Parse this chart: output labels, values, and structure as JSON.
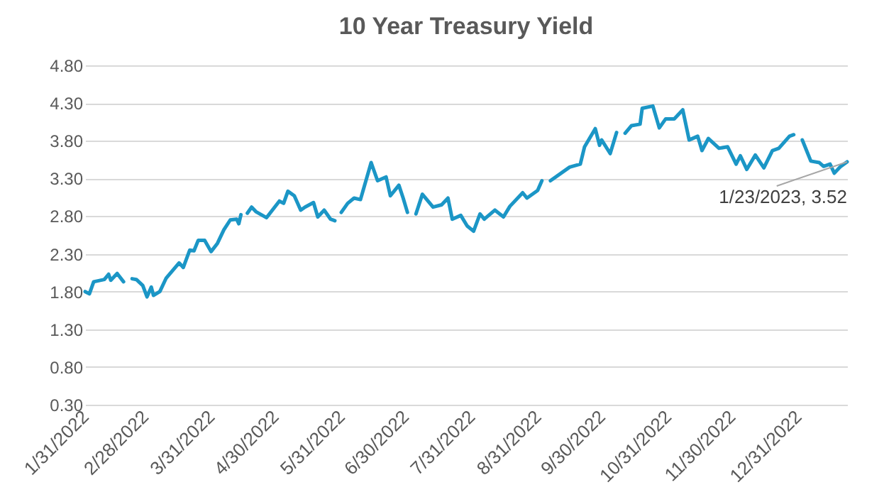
{
  "chart_data": {
    "type": "line",
    "title": "10 Year Treasury Yield",
    "x": [
      "2022-01-31",
      "2022-02-02",
      "2022-02-04",
      "2022-02-09",
      "2022-02-11",
      "2022-02-12",
      "2022-02-15",
      "2022-02-18",
      "2022-02-20",
      "2022-02-22",
      "2022-02-24",
      "2022-02-27",
      "2022-03-01",
      "2022-03-03",
      "2022-03-04",
      "2022-03-07",
      "2022-03-10",
      "2022-03-16",
      "2022-03-18",
      "2022-03-21",
      "2022-03-23",
      "2022-03-25",
      "2022-03-28",
      "2022-03-31",
      "2022-04-03",
      "2022-04-06",
      "2022-04-09",
      "2022-04-12",
      "2022-04-13",
      "2022-04-14",
      "2022-04-15",
      "2022-04-17",
      "2022-04-19",
      "2022-04-21",
      "2022-04-26",
      "2022-05-02",
      "2022-05-04",
      "2022-05-06",
      "2022-05-09",
      "2022-05-12",
      "2022-05-14",
      "2022-05-18",
      "2022-05-20",
      "2022-05-23",
      "2022-05-26",
      "2022-05-28",
      "2022-05-30",
      "2022-05-31",
      "2022-06-03",
      "2022-06-06",
      "2022-06-09",
      "2022-06-14",
      "2022-06-17",
      "2022-06-21",
      "2022-06-23",
      "2022-06-27",
      "2022-06-29",
      "2022-07-01",
      "2022-07-03",
      "2022-07-05",
      "2022-07-08",
      "2022-07-13",
      "2022-07-17",
      "2022-07-20",
      "2022-07-22",
      "2022-07-26",
      "2022-07-29",
      "2022-08-01",
      "2022-08-04",
      "2022-08-06",
      "2022-08-11",
      "2022-08-15",
      "2022-08-18",
      "2022-08-24",
      "2022-08-26",
      "2022-08-31",
      "2022-09-02",
      "2022-09-04",
      "2022-09-06",
      "2022-09-15",
      "2022-09-20",
      "2022-09-22",
      "2022-09-27",
      "2022-09-29",
      "2022-09-30",
      "2022-10-04",
      "2022-10-07",
      "2022-10-09",
      "2022-10-11",
      "2022-10-14",
      "2022-10-18",
      "2022-10-19",
      "2022-10-24",
      "2022-10-27",
      "2022-10-30",
      "2022-11-03",
      "2022-11-07",
      "2022-11-10",
      "2022-11-14",
      "2022-11-16",
      "2022-11-19",
      "2022-11-24",
      "2022-11-28",
      "2022-12-02",
      "2022-12-04",
      "2022-12-07",
      "2022-12-11",
      "2022-12-15",
      "2022-12-19",
      "2022-12-22",
      "2022-12-27",
      "2022-12-29",
      "2022-12-31",
      "2023-01-02",
      "2023-01-04",
      "2023-01-06",
      "2023-01-10",
      "2023-01-12",
      "2023-01-15",
      "2023-01-17",
      "2023-01-20",
      "2023-01-23"
    ],
    "series": [
      {
        "color": "#1b96c6",
        "values": [
          1.8,
          1.77,
          1.93,
          1.96,
          2.03,
          1.95,
          2.04,
          1.93,
          null,
          1.97,
          1.96,
          1.88,
          1.73,
          1.86,
          1.75,
          1.8,
          1.98,
          2.18,
          2.12,
          2.35,
          2.34,
          2.48,
          2.48,
          2.33,
          2.44,
          2.62,
          2.75,
          2.76,
          2.7,
          2.82,
          null,
          2.84,
          2.92,
          2.86,
          2.78,
          3.0,
          2.97,
          3.13,
          3.07,
          2.88,
          2.92,
          2.98,
          2.79,
          2.88,
          2.76,
          2.74,
          null,
          2.85,
          2.97,
          3.04,
          3.02,
          3.51,
          3.27,
          3.32,
          3.07,
          3.21,
          3.04,
          2.85,
          null,
          2.83,
          3.09,
          2.92,
          2.95,
          3.04,
          2.76,
          2.81,
          2.67,
          2.6,
          2.83,
          2.76,
          2.88,
          2.79,
          2.93,
          3.11,
          3.04,
          3.14,
          3.27,
          null,
          3.27,
          3.45,
          3.49,
          3.72,
          3.96,
          3.74,
          3.81,
          3.63,
          3.91,
          null,
          3.9,
          4.0,
          4.02,
          4.23,
          4.26,
          3.97,
          4.09,
          4.09,
          4.21,
          3.81,
          3.86,
          3.67,
          3.83,
          3.7,
          3.72,
          3.49,
          3.6,
          3.42,
          3.61,
          3.44,
          3.67,
          3.7,
          3.86,
          3.88,
          null,
          3.81,
          3.67,
          3.53,
          3.51,
          3.46,
          3.49,
          3.37,
          3.46,
          3.52
        ]
      }
    ],
    "xlim": [
      "2022-01-31",
      "2023-01-23"
    ],
    "xticks": [
      {
        "value": "2022-01-31",
        "label": "1/31/2022"
      },
      {
        "value": "2022-02-28",
        "label": "2/28/2022"
      },
      {
        "value": "2022-03-31",
        "label": "3/31/2022"
      },
      {
        "value": "2022-04-30",
        "label": "4/30/2022"
      },
      {
        "value": "2022-05-31",
        "label": "5/31/2022"
      },
      {
        "value": "2022-06-30",
        "label": "6/30/2022"
      },
      {
        "value": "2022-07-31",
        "label": "7/31/2022"
      },
      {
        "value": "2022-08-31",
        "label": "8/31/2022"
      },
      {
        "value": "2022-09-30",
        "label": "9/30/2022"
      },
      {
        "value": "2022-10-31",
        "label": "10/31/2022"
      },
      {
        "value": "2022-11-30",
        "label": "11/30/2022"
      },
      {
        "value": "2022-12-31",
        "label": "12/31/2022"
      }
    ],
    "ylim": [
      0.3,
      4.8
    ],
    "yticks": [
      {
        "value": 0.3,
        "label": "0.30"
      },
      {
        "value": 0.8,
        "label": "0.80"
      },
      {
        "value": 1.3,
        "label": "1.30"
      },
      {
        "value": 1.8,
        "label": "1.80"
      },
      {
        "value": 2.3,
        "label": "2.30"
      },
      {
        "value": 2.8,
        "label": "2.80"
      },
      {
        "value": 3.3,
        "label": "3.30"
      },
      {
        "value": 3.8,
        "label": "3.80"
      },
      {
        "value": 4.3,
        "label": "4.30"
      },
      {
        "value": 4.8,
        "label": "4.80"
      }
    ],
    "grid": "y",
    "legend": false,
    "marker": "none",
    "line_style": "solid",
    "annotations": [
      {
        "text": "1/23/2023, 3.52",
        "x": "2023-01-23",
        "y": 3.52
      }
    ]
  }
}
